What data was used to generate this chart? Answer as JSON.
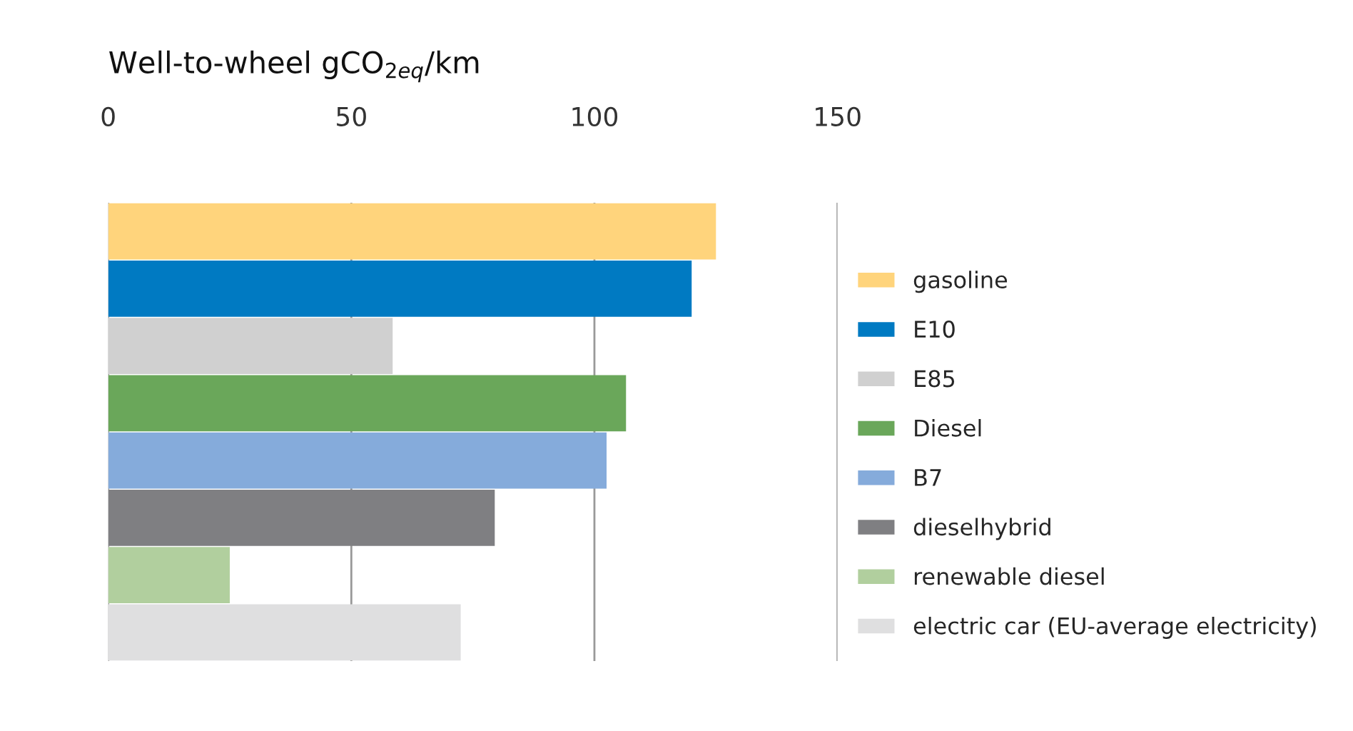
{
  "chart_data": {
    "type": "bar",
    "orientation": "horizontal",
    "title": "Well-to-wheel gCO$_{2eq}$/km",
    "categories": [
      null,
      null,
      null,
      null,
      null,
      null,
      null,
      null
    ],
    "series": [
      {
        "name": "gasoline",
        "color": "#ffd47c",
        "values": [
          125,
          null,
          null,
          null,
          null,
          null,
          null,
          null
        ]
      },
      {
        "name": "E10",
        "color": "#007ac2",
        "values": [
          null,
          120,
          null,
          null,
          null,
          null,
          null,
          null
        ]
      },
      {
        "name": "E85",
        "color": "#d0d0d0",
        "values": [
          null,
          null,
          58.5,
          null,
          null,
          null,
          null,
          null
        ]
      },
      {
        "name": "Diesel",
        "color": "#6aa75a",
        "values": [
          null,
          null,
          null,
          106.5,
          null,
          null,
          null,
          null
        ]
      },
      {
        "name": "B7",
        "color": "#85abdb",
        "values": [
          null,
          null,
          null,
          null,
          102.5,
          null,
          null,
          null
        ]
      },
      {
        "name": "dieselhybrid",
        "color": "#7f7f82",
        "values": [
          null,
          null,
          null,
          null,
          null,
          79.5,
          null,
          null
        ]
      },
      {
        "name": "renewable diesel",
        "color": "#b1cf9e",
        "values": [
          null,
          null,
          null,
          null,
          null,
          null,
          25,
          null
        ]
      },
      {
        "name": "electric car (EU-average electricity)",
        "color": "#dfdfe0",
        "values": [
          null,
          null,
          null,
          null,
          null,
          null,
          null,
          72.5
        ]
      }
    ],
    "xlim": [
      0,
      150
    ],
    "xticks": [
      0,
      50,
      100,
      150
    ],
    "grid": "x",
    "legend": "right",
    "tick_labels": "x"
  }
}
